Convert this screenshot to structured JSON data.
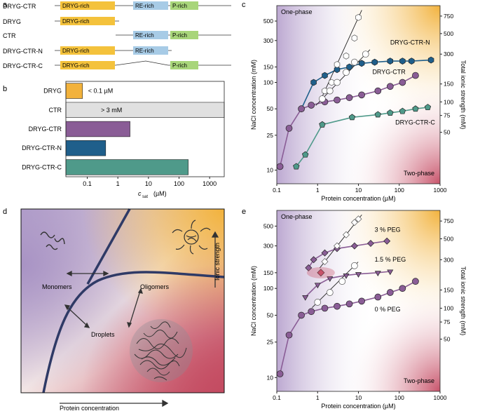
{
  "figure": {
    "panels": {
      "a": "a",
      "b": "b",
      "c": "c",
      "d": "d",
      "e": "e"
    },
    "colors": {
      "dryg": "#f4c23c",
      "re": "#a7cbe6",
      "p": "#a8d57a",
      "purple": "#8a5d96",
      "blue": "#1f5f8b",
      "green": "#4f9a8a",
      "pink": "#c8536a",
      "orange": "#f2b23c"
    }
  },
  "panel_a": {
    "constructs": [
      {
        "name": "DRYG-CTR",
        "domains": [
          "DRYG-rich",
          "RE-rich",
          "P-rich"
        ]
      },
      {
        "name": "DRYG",
        "domains": [
          "DRYG-rich"
        ]
      },
      {
        "name": "CTR",
        "domains": [
          "RE-rich",
          "P-rich"
        ]
      },
      {
        "name": "DRYG-CTR-N",
        "domains": [
          "DRYG-rich",
          "RE-rich"
        ]
      },
      {
        "name": "DRYG-CTR-C",
        "domains": [
          "DRYG-rich",
          "P-rich"
        ]
      }
    ],
    "dryg_label": "DRYG-rich",
    "re_label": "RE-rich",
    "p_label": "P-rich"
  },
  "chart_data": [
    {
      "panel": "b",
      "type": "bar",
      "orientation": "horizontal",
      "categories": [
        "DRYG",
        "CTR",
        "DRYG-CTR",
        "DRYG-CTR-N",
        "DRYG-CTR-C"
      ],
      "values": [
        0.07,
        3000,
        2.5,
        0.4,
        200
      ],
      "annotations": [
        "< 0.1 µM",
        "> 3 mM",
        "",
        "",
        ""
      ],
      "xscale": "log",
      "xlim": [
        0.02,
        3000
      ],
      "xticks": [
        "0.1",
        "1",
        "10",
        "100",
        "1000"
      ],
      "xlabel_main": "c",
      "xlabel_sub": "sat",
      "xlabel_unit": "(µM)"
    },
    {
      "panel": "c",
      "type": "scatter",
      "xscale": "log",
      "yscale": "log",
      "xlim": [
        0.1,
        1000
      ],
      "ylim": [
        7,
        750
      ],
      "xlabel": "Protein concentration (µM)",
      "ylabel": "NaCl concentration (mM)",
      "ylabel_right": "Total ionic strength (mM)",
      "xticks": [
        "0.1",
        "1",
        "10",
        "100",
        "1000"
      ],
      "yticks": [
        "10",
        "25",
        "50",
        "100",
        "150",
        "300",
        "500"
      ],
      "yticks_right": [
        "50",
        "75",
        "100",
        "150",
        "300",
        "500",
        "750"
      ],
      "region_labels": {
        "top": "One-phase",
        "bottom": "Two-phase"
      },
      "series": [
        {
          "name": "DRYG-CTR-N",
          "marker": "hexagon",
          "x": [
            0.4,
            0.8,
            1.5,
            3,
            6,
            12,
            25,
            60,
            120,
            200,
            600
          ],
          "y": [
            50,
            100,
            120,
            140,
            150,
            165,
            170,
            175,
            175,
            175,
            180
          ]
        },
        {
          "name": "DRYG-CTR",
          "marker": "circle",
          "x": [
            0.12,
            0.2,
            0.4,
            0.7,
            1.5,
            3,
            6,
            12,
            30,
            60,
            120,
            250
          ],
          "y": [
            11,
            30,
            50,
            55,
            60,
            63,
            67,
            72,
            80,
            90,
            100,
            120
          ]
        },
        {
          "name": "DRYG-CTR-C",
          "marker": "pentagon",
          "x": [
            0.3,
            0.5,
            1.3,
            7,
            30,
            60,
            120,
            250,
            500
          ],
          "y": [
            11,
            15,
            33,
            40,
            43,
            45,
            47,
            50,
            52
          ]
        },
        {
          "name": "open hexagons",
          "marker": "hexagon-open",
          "x": [
            1.5,
            2.2,
            3,
            5,
            8,
            10
          ],
          "y": [
            80,
            100,
            160,
            200,
            320,
            550
          ]
        },
        {
          "name": "open circles",
          "marker": "circle-open",
          "x": [
            1.3,
            2,
            3,
            5,
            8,
            15
          ],
          "y": [
            65,
            80,
            100,
            130,
            170,
            210
          ]
        }
      ]
    },
    {
      "panel": "e",
      "type": "scatter",
      "xscale": "log",
      "yscale": "log",
      "xlim": [
        0.1,
        1000
      ],
      "ylim": [
        7,
        750
      ],
      "xlabel": "Protein concentration (µM)",
      "ylabel": "NaCl concentration (mM)",
      "ylabel_right": "Total ionic strength (mM)",
      "xticks": [
        "0.1",
        "1",
        "10",
        "100",
        "1000"
      ],
      "yticks": [
        "10",
        "25",
        "50",
        "100",
        "150",
        "300",
        "500"
      ],
      "yticks_right": [
        "50",
        "75",
        "100",
        "150",
        "300",
        "500",
        "750"
      ],
      "region_labels": {
        "top": "One-phase",
        "bottom": "Two-phase"
      },
      "series": [
        {
          "name": "3 % PEG",
          "marker": "diamond",
          "x": [
            0.6,
            0.8,
            1.5,
            3,
            8,
            20,
            50
          ],
          "y": [
            170,
            210,
            250,
            280,
            300,
            320,
            340
          ]
        },
        {
          "name": "1.5 % PEG",
          "marker": "triangle-down",
          "x": [
            0.5,
            1,
            2,
            5,
            10,
            30,
            60
          ],
          "y": [
            80,
            110,
            130,
            140,
            145,
            150,
            155
          ]
        },
        {
          "name": "0 % PEG",
          "marker": "circle",
          "x": [
            0.12,
            0.2,
            0.4,
            0.7,
            1.5,
            3,
            6,
            12,
            30,
            60,
            120,
            250
          ],
          "y": [
            11,
            30,
            50,
            55,
            60,
            63,
            67,
            72,
            80,
            90,
            100,
            120
          ]
        },
        {
          "name": "open diamonds",
          "marker": "diamond-open",
          "x": [
            1.5,
            3,
            5,
            8,
            10
          ],
          "y": [
            200,
            300,
            400,
            550,
            600
          ]
        },
        {
          "name": "open circles",
          "marker": "circle-open",
          "x": [
            1,
            2,
            4,
            8
          ],
          "y": [
            70,
            90,
            120,
            180
          ]
        },
        {
          "name": "highlight",
          "marker": "diamond",
          "x": [
            1.2
          ],
          "y": [
            150
          ]
        }
      ]
    }
  ],
  "panel_d": {
    "labels": {
      "monomers": "Monomers",
      "oligomers": "Oligomers",
      "droplets": "Droplets",
      "y_axis": "Ionic strength",
      "x_axis": "Protein concentration"
    }
  }
}
